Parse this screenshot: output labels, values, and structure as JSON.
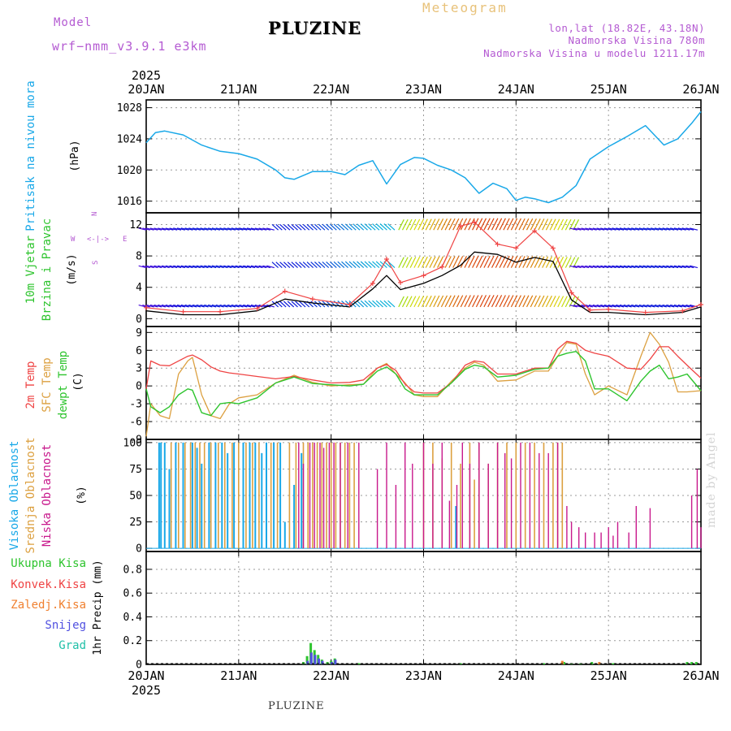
{
  "header": {
    "model_label": "Model",
    "model_name": "wrf−nmm_v3.9.1  e3km",
    "station": "PLUZINE",
    "meteogram": "Meteogram",
    "lonlat": "lon,lat (18.82E, 43.18N)",
    "elevation": "Nadmorska Visina 780m",
    "model_elevation": "Nadmorska Visina u modelu 1211.17m"
  },
  "footer": {
    "station": "PLUZINE",
    "made_by": "made by Angel"
  },
  "colors": {
    "pressure": "#19a8e8",
    "temp": "#ef4444",
    "sfc": "#dca040",
    "dew": "#2ec42e",
    "high_cloud": "#19a8e8",
    "mid_cloud": "#dca040",
    "low_cloud": "#c8198c",
    "wind_mean": "#000000",
    "gust": "#ef4444",
    "title": "#b45ad2"
  },
  "chart_data": [
    {
      "type": "line",
      "panel": "pressure",
      "ylabel": "(hPa)",
      "side_label": "Pritisak na nivou mora",
      "yticks": [
        1016,
        1020,
        1024,
        1028
      ],
      "ylim": [
        1014.5,
        1029
      ],
      "x_days": [
        0,
        0.1,
        0.2,
        0.4,
        0.6,
        0.8,
        1.0,
        1.2,
        1.4,
        1.5,
        1.6,
        1.8,
        2.0,
        2.15,
        2.3,
        2.45,
        2.6,
        2.75,
        2.9,
        3.0,
        3.15,
        3.3,
        3.45,
        3.6,
        3.75,
        3.9,
        4.0,
        4.1,
        4.2,
        4.35,
        4.5,
        4.65,
        4.8,
        5.0,
        5.2,
        5.4,
        5.6,
        5.75,
        5.9,
        6.0
      ],
      "values": [
        1023.5,
        1024.8,
        1025.0,
        1024.5,
        1023.2,
        1022.4,
        1022.1,
        1021.4,
        1020.0,
        1019.0,
        1018.8,
        1019.8,
        1019.8,
        1019.4,
        1020.6,
        1021.2,
        1018.2,
        1020.7,
        1021.6,
        1021.5,
        1020.6,
        1020.0,
        1019.0,
        1017.0,
        1018.3,
        1017.6,
        1016.1,
        1016.5,
        1016.3,
        1015.8,
        1016.5,
        1018.0,
        1021.4,
        1023.0,
        1024.3,
        1025.7,
        1023.2,
        1024.0,
        1026.0,
        1027.5
      ]
    },
    {
      "type": "line",
      "panel": "wind",
      "ylabel": "(m/s)",
      "side_label": [
        "10m Vjetar",
        "Brzina i Pravac"
      ],
      "compass": {
        "n": "N",
        "e": "E",
        "w": "W",
        "s": "S"
      },
      "yticks": [
        0,
        4,
        8,
        12
      ],
      "ylim": [
        -1,
        13.5
      ],
      "barb_levels": [
        1.5,
        6.5,
        11.3
      ],
      "series": [
        {
          "name": "mean speed",
          "x_days": [
            0,
            0.4,
            0.8,
            1.2,
            1.5,
            1.8,
            2.2,
            2.45,
            2.6,
            2.75,
            3.0,
            3.2,
            3.4,
            3.55,
            3.8,
            4.0,
            4.2,
            4.4,
            4.6,
            4.8,
            5.0,
            5.4,
            5.8,
            6.0
          ],
          "values": [
            1.0,
            0.5,
            0.5,
            1.0,
            2.5,
            2.0,
            1.5,
            3.8,
            5.5,
            3.7,
            4.5,
            5.5,
            6.8,
            8.5,
            8.2,
            7.2,
            7.8,
            7.3,
            2.4,
            0.8,
            0.8,
            0.5,
            0.8,
            1.5
          ]
        },
        {
          "name": "gust",
          "x_days": [
            0,
            0.4,
            0.8,
            1.2,
            1.5,
            1.8,
            2.2,
            2.45,
            2.6,
            2.75,
            3.0,
            3.2,
            3.4,
            3.55,
            3.8,
            4.0,
            4.2,
            4.4,
            4.6,
            4.8,
            5.0,
            5.4,
            5.8,
            6.0
          ],
          "values": [
            1.4,
            0.9,
            0.9,
            1.3,
            3.5,
            2.5,
            1.8,
            4.5,
            7.6,
            4.6,
            5.5,
            6.6,
            11.8,
            12.3,
            9.5,
            9.0,
            11.2,
            9.0,
            3.3,
            1.1,
            1.2,
            0.8,
            1.0,
            1.8
          ]
        }
      ]
    },
    {
      "type": "line",
      "panel": "temperature",
      "ylabel": "(C)",
      "side_label": [
        "2m Temp",
        "SFC Temp",
        "dewpt Temp"
      ],
      "yticks": [
        -9,
        -6,
        -3,
        0,
        3,
        6,
        9
      ],
      "ylim": [
        -9,
        10
      ],
      "x_days": [
        0,
        0.05,
        0.15,
        0.25,
        0.35,
        0.45,
        0.5,
        0.6,
        0.7,
        0.8,
        0.9,
        1.0,
        1.2,
        1.4,
        1.6,
        1.8,
        2.0,
        2.2,
        2.35,
        2.5,
        2.6,
        2.7,
        2.8,
        2.9,
        3.0,
        3.15,
        3.3,
        3.45,
        3.55,
        3.65,
        3.8,
        4.0,
        4.2,
        4.35,
        4.45,
        4.55,
        4.65,
        4.75,
        4.85,
        5.0,
        5.2,
        5.35,
        5.45,
        5.55,
        5.65,
        5.75,
        5.85,
        6.0
      ],
      "series": [
        {
          "name": "2m Temp",
          "values": [
            -0.5,
            4.2,
            3.5,
            3.4,
            4.2,
            5.0,
            5.2,
            4.4,
            3.2,
            2.5,
            2.2,
            2.0,
            1.6,
            1.2,
            1.6,
            1.0,
            0.5,
            0.6,
            1.0,
            3.0,
            3.6,
            2.6,
            0.3,
            -1.0,
            -1.2,
            -1.2,
            0.5,
            3.5,
            4.2,
            4.0,
            2.0,
            2.0,
            3.0,
            3.0,
            6.2,
            7.5,
            7.2,
            6.0,
            5.5,
            5.0,
            3.0,
            2.8,
            4.5,
            6.6,
            6.6,
            5.0,
            3.5,
            1.3
          ]
        },
        {
          "name": "SFC Temp",
          "values": [
            -8.5,
            -3.0,
            -5.0,
            -5.5,
            2.0,
            4.2,
            4.8,
            -1.5,
            -5.0,
            -5.5,
            -3.0,
            -2.0,
            -1.5,
            0.5,
            1.8,
            0.6,
            0.0,
            0.2,
            0.3,
            3.0,
            3.8,
            2.0,
            0.5,
            -1.5,
            -1.8,
            -1.8,
            0.8,
            3.0,
            4.0,
            3.5,
            0.8,
            1.0,
            2.5,
            2.5,
            5.0,
            7.3,
            7.0,
            2.0,
            -1.5,
            0.0,
            -1.5,
            5.0,
            9.0,
            7.0,
            4.0,
            -1.0,
            -1.0,
            -0.8
          ]
        },
        {
          "name": "dewpt Temp",
          "values": [
            -0.5,
            -3.5,
            -4.5,
            -3.5,
            -1.5,
            -0.5,
            -0.7,
            -4.5,
            -5.0,
            -3.0,
            -2.8,
            -3.0,
            -2.0,
            0.5,
            1.5,
            0.4,
            0.2,
            0.0,
            0.3,
            2.5,
            3.2,
            2.0,
            -0.5,
            -1.5,
            -1.5,
            -1.5,
            0.5,
            2.8,
            3.5,
            3.2,
            1.5,
            1.8,
            2.8,
            3.0,
            5.0,
            5.5,
            5.8,
            4.2,
            -0.5,
            -0.5,
            -2.5,
            0.8,
            2.5,
            3.5,
            1.2,
            1.5,
            2.0,
            -0.8
          ]
        }
      ]
    },
    {
      "type": "bar",
      "panel": "cloud",
      "ylabel": "(%)",
      "side_label": [
        "Visoka Oblacnost",
        "Srednja Oblacnost",
        "Niska Oblacnost"
      ],
      "yticks": [
        0,
        25,
        50,
        75,
        100
      ],
      "ylim": [
        -3,
        103
      ],
      "high_bars": {
        "x_days": [
          0.14,
          0.16,
          0.2,
          0.25,
          0.32,
          0.4,
          0.5,
          0.55,
          0.6,
          0.68,
          0.75,
          0.82,
          0.88,
          0.95,
          1.05,
          1.12,
          1.18,
          1.25,
          1.3,
          1.38,
          1.45,
          1.5,
          1.6,
          1.68,
          3.35
        ],
        "values": [
          100,
          100,
          100,
          75,
          100,
          100,
          100,
          95,
          80,
          100,
          100,
          100,
          90,
          100,
          100,
          100,
          100,
          90,
          100,
          100,
          100,
          25,
          60,
          90,
          40
        ]
      },
      "mid_bars": {
        "x_days": [
          0.27,
          0.35,
          0.42,
          0.48,
          0.53,
          0.58,
          0.63,
          0.7,
          0.78,
          0.85,
          0.93,
          1.0,
          1.08,
          1.15,
          1.22,
          1.35,
          1.42,
          1.55,
          1.62,
          1.7,
          1.75,
          1.8,
          1.85,
          1.9,
          1.95,
          2.0,
          2.05,
          2.1,
          2.15,
          2.2,
          2.25,
          3.0,
          3.1,
          3.2,
          3.3,
          3.4,
          3.5,
          3.55,
          3.6,
          3.7,
          3.8,
          3.9,
          4.0,
          4.1,
          4.2,
          4.3,
          4.4,
          4.45,
          4.5
        ],
        "values": [
          100,
          100,
          100,
          100,
          100,
          100,
          100,
          100,
          100,
          100,
          100,
          100,
          100,
          100,
          100,
          100,
          100,
          100,
          100,
          100,
          100,
          100,
          100,
          100,
          100,
          100,
          100,
          100,
          100,
          100,
          100,
          100,
          100,
          85,
          100,
          80,
          100,
          65,
          100,
          80,
          100,
          100,
          100,
          100,
          100,
          100,
          100,
          100,
          100
        ]
      },
      "low_bars": {
        "x_days": [
          1.65,
          1.7,
          1.77,
          1.82,
          1.88,
          1.92,
          1.98,
          2.03,
          2.1,
          2.18,
          2.3,
          2.5,
          2.6,
          2.7,
          2.8,
          2.88,
          3.0,
          3.1,
          3.2,
          3.28,
          3.36,
          3.42,
          3.5,
          3.6,
          3.7,
          3.8,
          3.88,
          3.95,
          4.05,
          4.15,
          4.25,
          4.35,
          4.45,
          4.55,
          4.6,
          4.68,
          4.75,
          4.85,
          4.92,
          5.0,
          5.05,
          5.1,
          5.22,
          5.3,
          5.45,
          5.9,
          5.96,
          6.0
        ],
        "values": [
          100,
          80,
          100,
          100,
          100,
          95,
          100,
          100,
          100,
          100,
          100,
          75,
          100,
          60,
          100,
          80,
          100,
          80,
          100,
          45,
          60,
          100,
          80,
          100,
          80,
          100,
          90,
          85,
          100,
          100,
          90,
          90,
          100,
          40,
          25,
          20,
          15,
          15,
          15,
          20,
          12,
          25,
          15,
          40,
          38,
          50,
          75,
          20
        ]
      }
    },
    {
      "type": "bar",
      "panel": "precip",
      "ylabel": "1hr Precip (mm)",
      "side_label": [
        "Ukupna Kisa",
        "Konvek.Kisa",
        "Zaledj.Kisa",
        "Snijeg",
        "Grad"
      ],
      "yticks": [
        0,
        0.2,
        0.4,
        0.6,
        0.8
      ],
      "ylim": [
        0,
        0.95
      ],
      "total": {
        "x_days": [
          1.7,
          1.74,
          1.78,
          1.82,
          1.86,
          1.9,
          1.96,
          2.0,
          2.04,
          2.3,
          3.4,
          4.3,
          4.52,
          4.6,
          4.7,
          4.82,
          4.9,
          5.05,
          5.85,
          5.9,
          5.95
        ],
        "values": [
          0.02,
          0.07,
          0.18,
          0.12,
          0.08,
          0.04,
          0.02,
          0.03,
          0.05,
          0.01,
          0.01,
          0.01,
          0.02,
          0.01,
          0.01,
          0.02,
          0.01,
          0.01,
          0.02,
          0.02,
          0.02
        ]
      },
      "snow": {
        "x_days": [
          1.72,
          1.76,
          1.8,
          1.84,
          1.88,
          1.98,
          2.02
        ],
        "values": [
          0.03,
          0.1,
          0.08,
          0.05,
          0.03,
          0.02,
          0.04
        ]
      },
      "freezing": {
        "x_days": [
          4.5,
          4.9
        ],
        "values": [
          0.03,
          0.02
        ]
      }
    }
  ],
  "x_axis": {
    "top_year": "2025",
    "bottom_year": "2025",
    "day_labels": [
      "20JAN",
      "21JAN",
      "22JAN",
      "23JAN",
      "24JAN",
      "25JAN",
      "26JAN"
    ]
  }
}
